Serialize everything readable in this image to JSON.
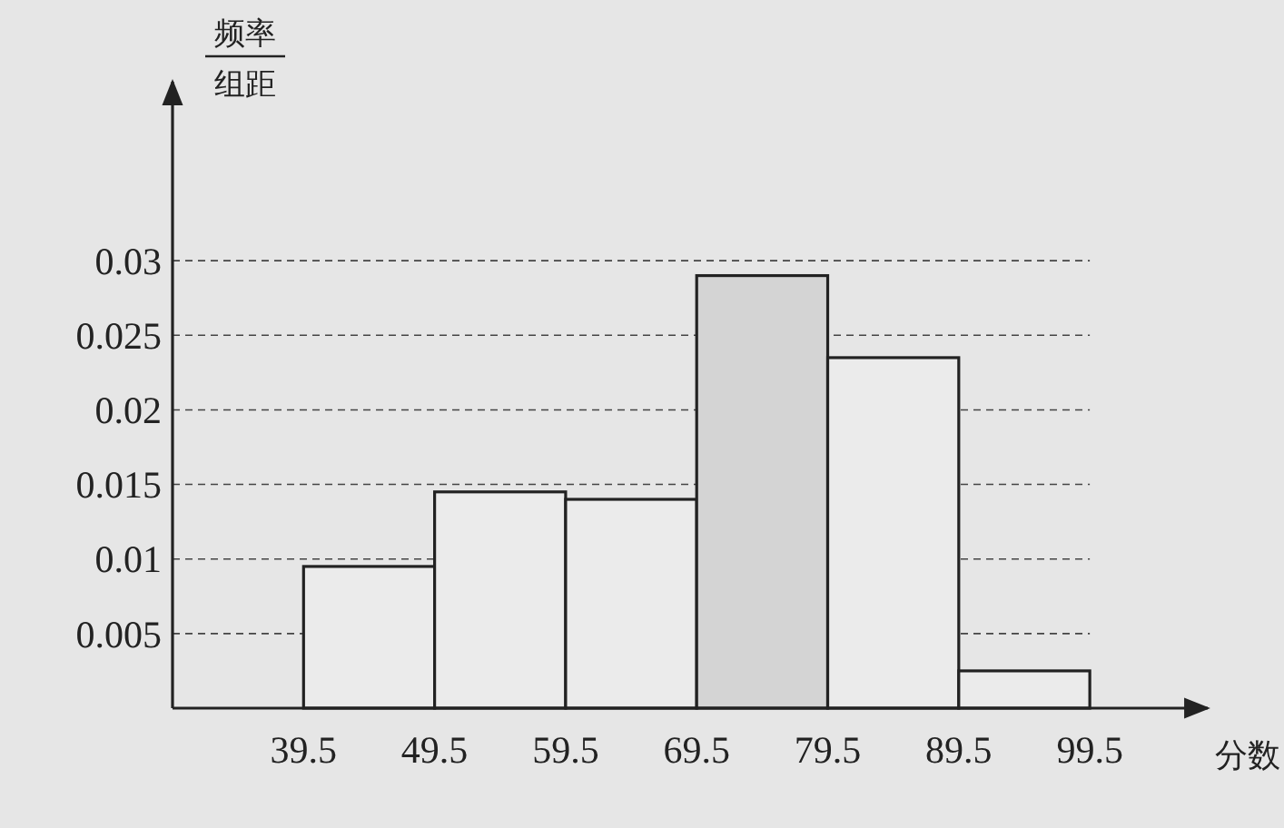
{
  "chart_data": {
    "type": "histogram",
    "xlabel": "分数",
    "ylabel": "频率组距",
    "bins": [
      39.5,
      49.5,
      59.5,
      69.5,
      79.5,
      89.5,
      99.5
    ],
    "values": [
      0.0095,
      0.0145,
      0.014,
      0.029,
      0.0235,
      0.0025
    ],
    "colors": [
      "#ebebeb",
      "#ebebeb",
      "#ebebeb",
      "#d4d4d4",
      "#ebebeb",
      "#ebebeb"
    ],
    "xlim": [
      29.5,
      108.5
    ],
    "ylim": [
      0,
      0.042
    ],
    "xticks": [
      39.5,
      49.5,
      59.5,
      69.5,
      79.5,
      89.5,
      99.5
    ],
    "yticks": [
      0.005,
      0.01,
      0.015,
      0.02,
      0.025,
      0.03
    ],
    "grid": "y"
  }
}
